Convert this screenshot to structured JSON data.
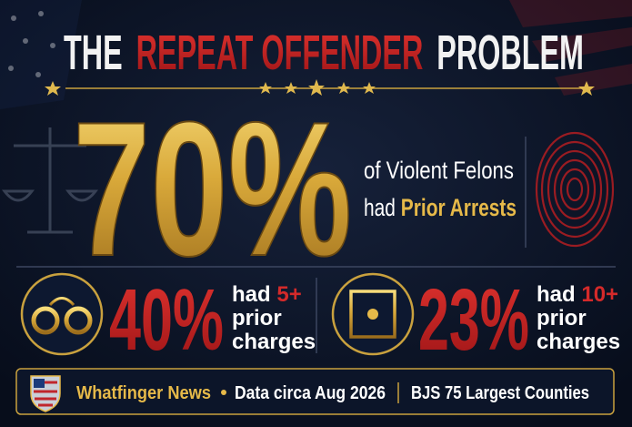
{
  "title": {
    "part1": "THE",
    "part2": "REPEAT OFFENDER",
    "part3": "PROBLEM"
  },
  "headline": {
    "stat": "70%",
    "line1": "of Violent Felons",
    "line2_prefix": "had",
    "line2_highlight": "Prior Arrests"
  },
  "stats": [
    {
      "value": "40%",
      "prefix": "had",
      "highlight": "5+",
      "line2": "prior",
      "line3": "charges"
    },
    {
      "value": "23%",
      "prefix": "had",
      "highlight": "10+",
      "line2": "prior",
      "line3": "charges"
    }
  ],
  "footer": {
    "source": "Whatfinger News",
    "date": "Data circa Aug 2026",
    "reference": "BJS 75 Largest Counties"
  }
}
